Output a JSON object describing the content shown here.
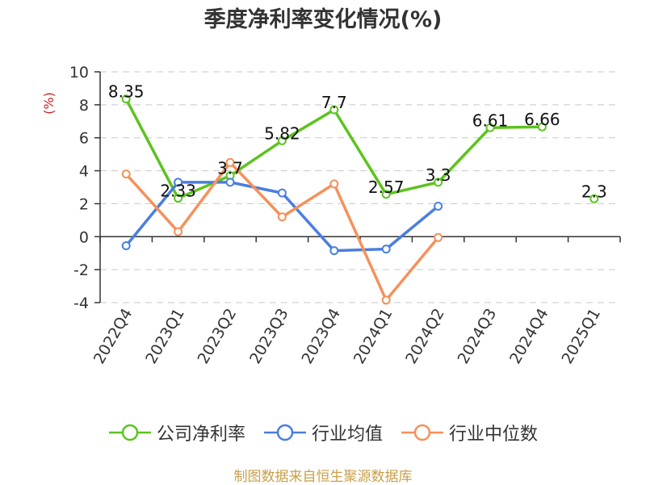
{
  "chart_data": {
    "type": "line",
    "title": "季度净利率变化情况(%)",
    "ylabel": "(%)",
    "xlabel": "",
    "categories": [
      "2022Q4",
      "2023Q1",
      "2023Q2",
      "2023Q3",
      "2023Q4",
      "2024Q1",
      "2024Q2",
      "2024Q3",
      "2024Q4",
      "2025Q1"
    ],
    "ylim": [
      -4,
      10
    ],
    "yticks": [
      -4,
      -2,
      0,
      2,
      4,
      6,
      8,
      10
    ],
    "grid": true,
    "legend_position": "bottom",
    "series": [
      {
        "name": "公司净利率",
        "color": "#5cc41d",
        "values": [
          8.35,
          2.33,
          3.7,
          5.82,
          7.7,
          2.57,
          3.3,
          6.61,
          6.66,
          2.3
        ],
        "labels": [
          "8.35",
          "2.33",
          "3.7",
          "5.82",
          "7.7",
          "2.57",
          "3.3",
          "6.61",
          "6.66",
          "2.3"
        ],
        "segments_connected": [
          true,
          true,
          true,
          true,
          true,
          true,
          true,
          true,
          false
        ]
      },
      {
        "name": "行业均值",
        "color": "#4a7ee0",
        "values": [
          -0.55,
          3.3,
          3.3,
          2.65,
          -0.85,
          -0.75,
          1.85,
          null,
          null,
          null
        ]
      },
      {
        "name": "行业中位数",
        "color": "#f5915a",
        "values": [
          3.8,
          0.3,
          4.5,
          1.2,
          3.2,
          -3.85,
          -0.05,
          null,
          null,
          null
        ]
      }
    ]
  },
  "source_text": "制图数据来自恒生聚源数据库"
}
